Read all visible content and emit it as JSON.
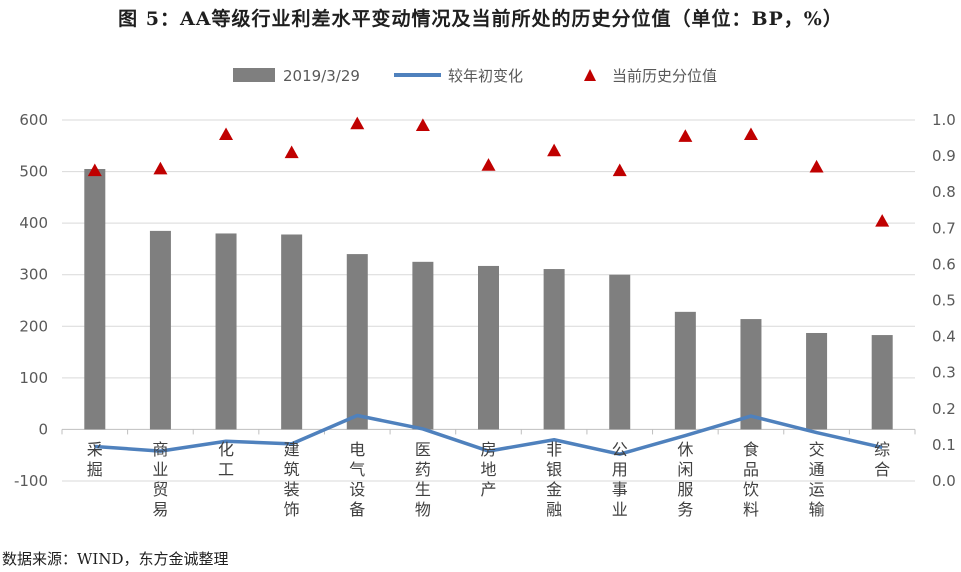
{
  "title": "图 5：AA等级行业利差水平变动情况及当前所处的历史分位值（单位：BP，%）",
  "source": "数据来源：WIND，东方金诚整理",
  "colors": {
    "bar": "#7f7f7f",
    "line": "#4f81bd",
    "marker": "#c00000",
    "axis": "#d9d9d9",
    "text": "#595959"
  },
  "chart_data": {
    "type": "bar",
    "categories": [
      "采掘",
      "商业贸易",
      "化工",
      "建筑装饰",
      "电气设备",
      "医药生物",
      "房地产",
      "非银金融",
      "公用事业",
      "休闲服务",
      "食品饮料",
      "交通运输",
      "综合"
    ],
    "series": [
      {
        "name": "2019/3/29",
        "type": "bar",
        "axis": "left",
        "values": [
          505,
          385,
          380,
          378,
          340,
          325,
          317,
          311,
          300,
          228,
          214,
          187,
          183
        ]
      },
      {
        "name": "较年初变化",
        "type": "line",
        "axis": "left",
        "values": [
          -33,
          -42,
          -23,
          -28,
          27,
          1,
          -42,
          -20,
          -48,
          -12,
          26,
          -6,
          -35
        ]
      },
      {
        "name": "当前历史分位值",
        "type": "scatter",
        "axis": "right",
        "values": [
          0.86,
          0.865,
          0.96,
          0.91,
          0.99,
          0.985,
          0.875,
          0.915,
          0.86,
          0.955,
          0.96,
          0.87,
          0.72
        ]
      }
    ],
    "y_left": {
      "min": -100,
      "max": 600,
      "ticks": [
        "-100",
        "0",
        "100",
        "200",
        "300",
        "400",
        "500",
        "600"
      ]
    },
    "y_right": {
      "min": 0.0,
      "max": 1.0,
      "ticks": [
        "0.0",
        "0.1",
        "0.2",
        "0.3",
        "0.4",
        "0.5",
        "0.6",
        "0.7",
        "0.8",
        "0.9",
        "1.0"
      ]
    },
    "legend": {
      "position": "top",
      "items": [
        "2019/3/29",
        "较年初变化",
        "当前历史分位值"
      ]
    }
  }
}
